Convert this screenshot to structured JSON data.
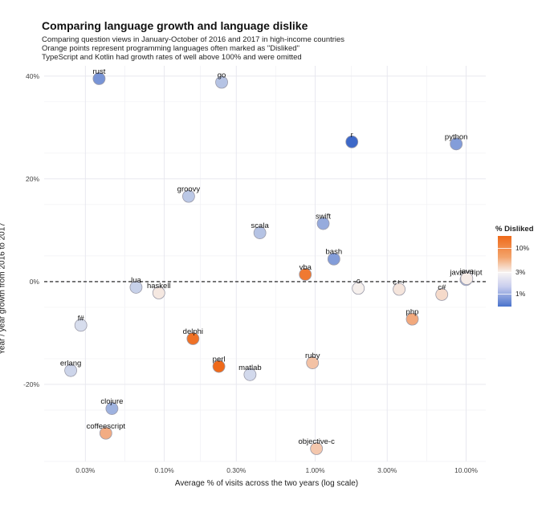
{
  "title": "Comparing language growth and language dislike",
  "subtitle": [
    "Comparing question views in January-October of 2016 and 2017 in high-income countries",
    "Orange points represent programming languages often marked as \"Disliked\"",
    "TypeScript and Kotlin had growth rates of well above 100% and were omitted"
  ],
  "chart_data": {
    "type": "scatter",
    "title": "Comparing language growth and language dislike",
    "xlabel": "Average % of visits across the two years (log scale)",
    "ylabel": "Year / year growth from 2016 to 2017",
    "x_scale": "log",
    "xlim": [
      0.016,
      13.5
    ],
    "ylim": [
      -35,
      42
    ],
    "x_ticks": [
      0.03,
      0.1,
      0.3,
      1,
      3,
      10
    ],
    "x_tick_labels": [
      "0.03%",
      "0.10%",
      "0.30%",
      "1.00%",
      "3.00%",
      "10.00%"
    ],
    "y_ticks": [
      -20,
      0,
      20,
      40
    ],
    "y_tick_labels": [
      "-20%",
      "0%",
      "20%",
      "40%"
    ],
    "reference_line": {
      "y": 0,
      "style": "dashed"
    },
    "grid": true,
    "legend": {
      "title": "% Disliked",
      "position": "right",
      "ticks": [
        "10%",
        "3%",
        "1%"
      ],
      "colors": {
        "high": "#ef6a1a",
        "mid": "#f5f3f3",
        "low": "#3d68c8"
      }
    },
    "points": [
      {
        "label": "rust",
        "x": 0.037,
        "y": 39.5,
        "disliked": 1.0
      },
      {
        "label": "go",
        "x": 0.24,
        "y": 38.8,
        "disliked": 1.7
      },
      {
        "label": "r",
        "x": 1.75,
        "y": 27.2,
        "disliked": 0.6
      },
      {
        "label": "python",
        "x": 8.6,
        "y": 26.8,
        "disliked": 1.1
      },
      {
        "label": "groovy",
        "x": 0.145,
        "y": 16.6,
        "disliked": 1.8
      },
      {
        "label": "swift",
        "x": 1.13,
        "y": 11.3,
        "disliked": 1.3
      },
      {
        "label": "scala",
        "x": 0.43,
        "y": 9.5,
        "disliked": 1.7
      },
      {
        "label": "bash",
        "x": 1.33,
        "y": 4.4,
        "disliked": 1.1
      },
      {
        "label": "vba",
        "x": 0.86,
        "y": 1.4,
        "disliked": 20
      },
      {
        "label": "javascript",
        "x": 10.0,
        "y": 0.4,
        "disliked": 1.5
      },
      {
        "label": "lua",
        "x": 0.065,
        "y": -1.1,
        "disliked": 2.0
      },
      {
        "label": "haskell",
        "x": 0.092,
        "y": -2.2,
        "disliked": 3.6
      },
      {
        "label": "c",
        "x": 1.93,
        "y": -1.3,
        "disliked": 3.2
      },
      {
        "label": "c++",
        "x": 3.6,
        "y": -1.5,
        "disliked": 3.8
      },
      {
        "label": "c#",
        "x": 6.9,
        "y": -2.5,
        "disliked": 4.5
      },
      {
        "label": "java",
        "x": 10.1,
        "y": 0.6,
        "disliked": 3.4
      },
      {
        "label": "php",
        "x": 4.4,
        "y": -7.3,
        "disliked": 9.5
      },
      {
        "label": "f#",
        "x": 0.028,
        "y": -8.5,
        "disliked": 2.3
      },
      {
        "label": "delphi",
        "x": 0.155,
        "y": -11.1,
        "disliked": 22
      },
      {
        "label": "perl",
        "x": 0.23,
        "y": -16.5,
        "disliked": 25
      },
      {
        "label": "matlab",
        "x": 0.37,
        "y": -18.1,
        "disliked": 2.2
      },
      {
        "label": "ruby",
        "x": 0.96,
        "y": -15.8,
        "disliked": 6.5
      },
      {
        "label": "erlang",
        "x": 0.024,
        "y": -17.3,
        "disliked": 2.1
      },
      {
        "label": "clojure",
        "x": 0.045,
        "y": -24.7,
        "disliked": 1.4
      },
      {
        "label": "coffeescript",
        "x": 0.041,
        "y": -29.5,
        "disliked": 9.0
      },
      {
        "label": "objective-c",
        "x": 1.02,
        "y": -32.5,
        "disliked": 6.0
      }
    ]
  }
}
